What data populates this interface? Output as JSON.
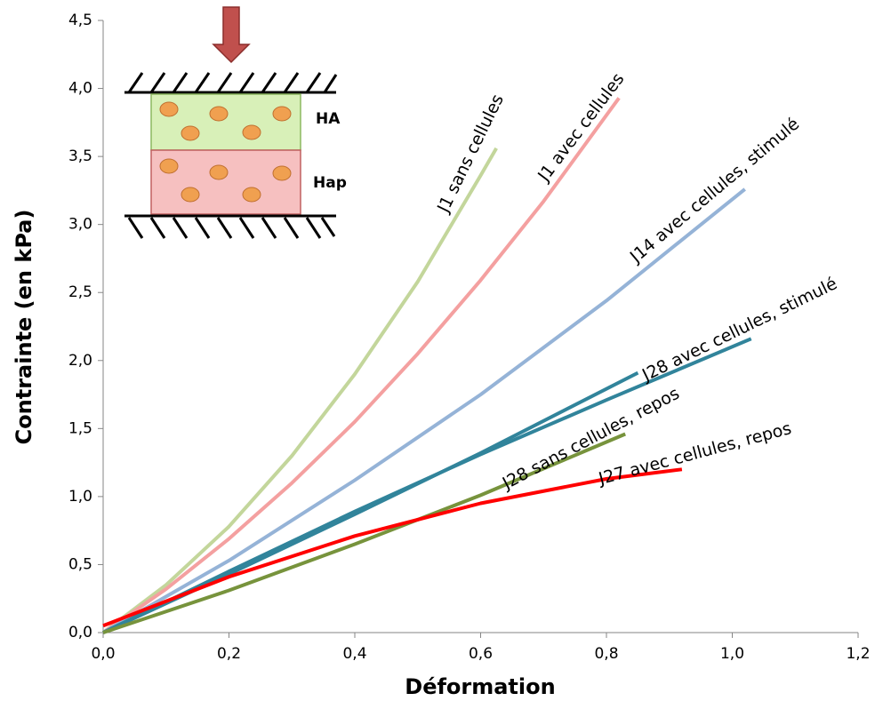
{
  "chart_data": {
    "type": "line",
    "x_label": "Déformation",
    "y_label": "Contrainte (en kPa)",
    "xlim": [
      0,
      1.2
    ],
    "ylim": [
      0,
      4.5
    ],
    "xticks": [
      {
        "value": 0,
        "label": "0,0"
      },
      {
        "value": 0.2,
        "label": "0,2"
      },
      {
        "value": 0.4,
        "label": "0,4"
      },
      {
        "value": 0.6,
        "label": "0,6"
      },
      {
        "value": 0.8,
        "label": "0,8"
      },
      {
        "value": 1.0,
        "label": "1,0"
      },
      {
        "value": 1.2,
        "label": "1,2"
      }
    ],
    "yticks": [
      {
        "value": 0,
        "label": "0,0"
      },
      {
        "value": 0.5,
        "label": "0,5"
      },
      {
        "value": 1.0,
        "label": "1,0"
      },
      {
        "value": 1.5,
        "label": "1,5"
      },
      {
        "value": 2.0,
        "label": "2,0"
      },
      {
        "value": 2.5,
        "label": "2,5"
      },
      {
        "value": 3.0,
        "label": "3,0"
      },
      {
        "value": 3.5,
        "label": "3,5"
      },
      {
        "value": 4.0,
        "label": "4,0"
      },
      {
        "value": 4.5,
        "label": "4,5"
      }
    ],
    "inset_labels": [
      "HA",
      "Hap"
    ],
    "series": [
      {
        "name": "J1 sans cellules",
        "color": "#c3d69b",
        "x": [
          0,
          0.1,
          0.2,
          0.3,
          0.4,
          0.5,
          0.6,
          0.625
        ],
        "values": [
          0,
          0.35,
          0.78,
          1.3,
          1.9,
          2.58,
          3.36,
          3.56
        ]
      },
      {
        "name": "J1 avec cellules",
        "color": "#f4a0a0",
        "x": [
          0,
          0.1,
          0.2,
          0.3,
          0.4,
          0.5,
          0.6,
          0.7,
          0.82
        ],
        "values": [
          0,
          0.32,
          0.69,
          1.1,
          1.55,
          2.05,
          2.59,
          3.17,
          3.93
        ]
      },
      {
        "name": "J14 avec cellules, stimulé",
        "color": "#95b3d7",
        "x": [
          0,
          0.2,
          0.4,
          0.6,
          0.8,
          1.02
        ],
        "values": [
          0,
          0.53,
          1.12,
          1.75,
          2.44,
          3.26
        ]
      },
      {
        "name": "J28 avec cellules, stimulé",
        "color": "#31849b",
        "x": [
          0,
          0.2,
          0.4,
          0.6,
          0.8,
          1.03
        ],
        "values": [
          0,
          0.45,
          0.89,
          1.31,
          1.71,
          2.16
        ]
      },
      {
        "color": "#31849b",
        "x": [
          0,
          0.2,
          0.4,
          0.6,
          0.85
        ],
        "values": [
          0,
          0.43,
          0.87,
          1.32,
          1.91
        ]
      },
      {
        "name": "J28 sans cellules, repos",
        "color": "#77933c",
        "x": [
          0,
          0.2,
          0.4,
          0.6,
          0.83
        ],
        "values": [
          0,
          0.31,
          0.65,
          1.01,
          1.46
        ]
      },
      {
        "name": "J27 avec cellules, repos",
        "color": "#ff0000",
        "x": [
          0,
          0.2,
          0.4,
          0.6,
          0.8,
          0.92
        ],
        "values": [
          0.05,
          0.41,
          0.71,
          0.95,
          1.13,
          1.2
        ]
      }
    ]
  }
}
